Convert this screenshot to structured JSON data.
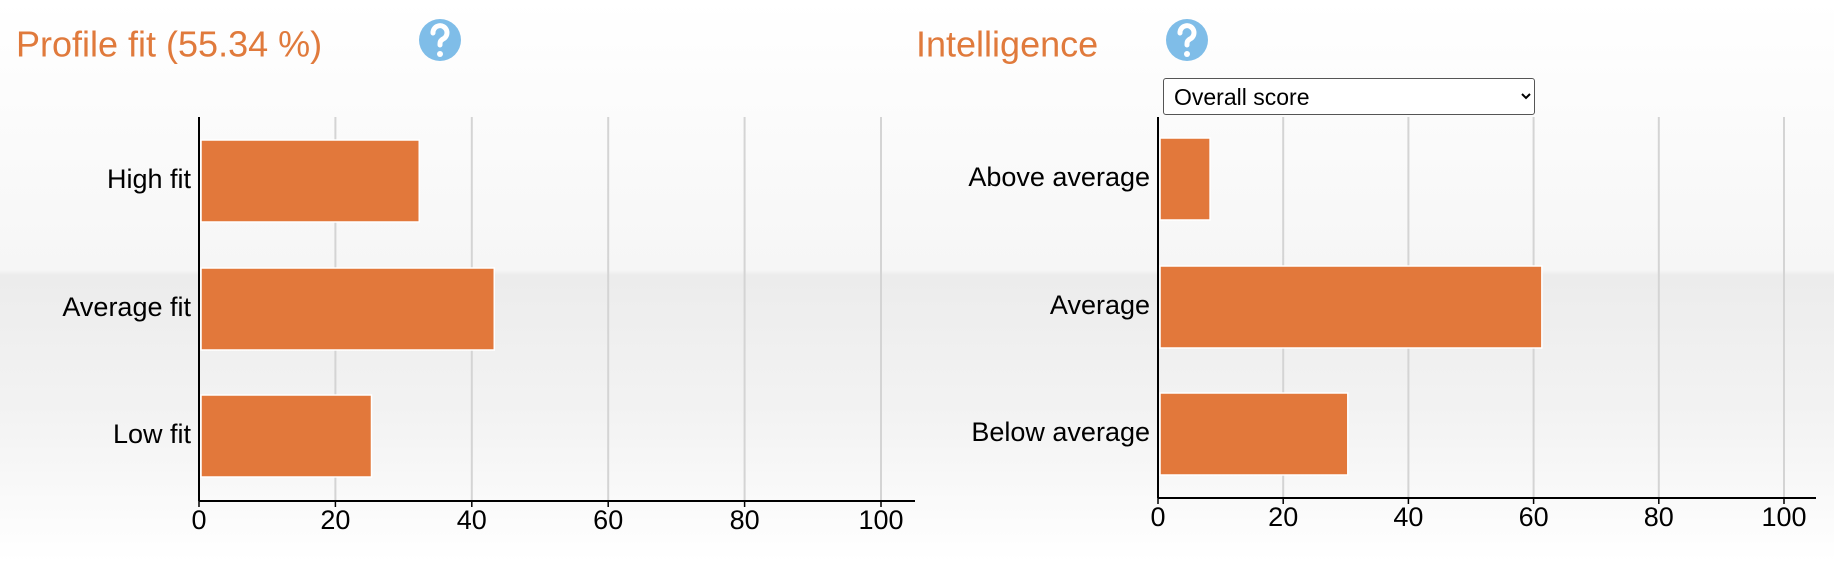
{
  "chart_data": [
    {
      "type": "bar",
      "orientation": "horizontal",
      "title": "Profile fit (55.34 %)",
      "categories": [
        "High fit",
        "Average fit",
        "Low fit"
      ],
      "values": [
        32,
        43,
        25
      ],
      "color": "#e2783b",
      "xlim": [
        0,
        100
      ],
      "xticks": [
        0,
        20,
        40,
        60,
        80,
        100
      ],
      "grid": true
    },
    {
      "type": "bar",
      "orientation": "horizontal",
      "title": "Intelligence",
      "selector": "Overall score",
      "categories": [
        "Above average",
        "Average",
        "Below average"
      ],
      "values": [
        8,
        61,
        30
      ],
      "color": "#e2783b",
      "xlim": [
        0,
        100
      ],
      "xticks": [
        0,
        20,
        40,
        60,
        80,
        100
      ],
      "grid": true
    }
  ]
}
